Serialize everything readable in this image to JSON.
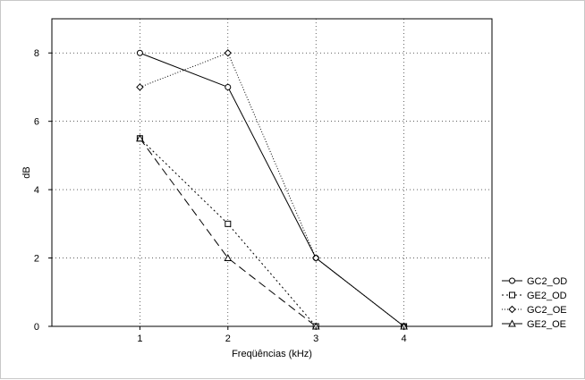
{
  "chart_data": {
    "type": "line",
    "xlabel": "Freqüências (kHz)",
    "ylabel": "dB",
    "x": [
      1,
      2,
      3,
      4
    ],
    "xlim": [
      0,
      5
    ],
    "ylim": [
      0,
      9
    ],
    "xticks": [
      "1",
      "2",
      "3",
      "4"
    ],
    "yticks": [
      "0",
      "2",
      "4",
      "6",
      "8"
    ],
    "grid": true,
    "legend_position": "right",
    "series": [
      {
        "name": "GC2_OD",
        "values": [
          8,
          7,
          2,
          0
        ],
        "marker": "circle",
        "line_style": "solid"
      },
      {
        "name": "GE2_OD",
        "values": [
          5.5,
          3,
          0,
          0
        ],
        "marker": "square",
        "line_style": "dotted"
      },
      {
        "name": "GC2_OE",
        "values": [
          7,
          8,
          2,
          0
        ],
        "marker": "diamond",
        "line_style": "fine-dotted"
      },
      {
        "name": "GE2_OE",
        "values": [
          5.5,
          2,
          0,
          0
        ],
        "marker": "triangle",
        "line_style": "dashed"
      }
    ],
    "colors": {
      "line": "#000000",
      "grid": "#000000",
      "frame": "#000000",
      "background": "#ffffff"
    }
  }
}
